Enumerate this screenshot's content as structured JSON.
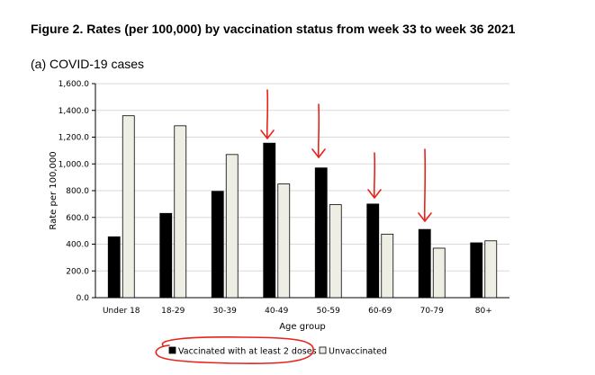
{
  "figure_title": "Figure 2. Rates (per 100,000) by vaccination status from week 33 to week 36 2021",
  "subtitle": "(a) COVID-19 cases",
  "chart_data": {
    "type": "bar",
    "title": "Figure 2. Rates (per 100,000) by vaccination status from week 33 to week 36 2021",
    "subtitle": "(a) COVID-19 cases",
    "xlabel": "Age group",
    "ylabel": "Rate per 100,000",
    "ylim": [
      0,
      1600
    ],
    "yticks": [
      0,
      200,
      400,
      600,
      800,
      1000,
      1200,
      1400,
      1600
    ],
    "ytick_labels": [
      "0.0",
      "200.0",
      "400.0",
      "600.0",
      "800.0",
      "1,000.0",
      "1,200.0",
      "1,400.0",
      "1,600.0"
    ],
    "categories": [
      "Under 18",
      "18-29",
      "30-39",
      "40-49",
      "50-59",
      "60-69",
      "70-79",
      "80+"
    ],
    "series": [
      {
        "name": "Vaccinated with at least 2 doses",
        "color": "#000000",
        "values": [
          455,
          630,
          795,
          1155,
          970,
          700,
          510,
          410
        ]
      },
      {
        "name": "Unvaccinated",
        "color": "#eeeee4",
        "values": [
          1360,
          1285,
          1070,
          850,
          695,
          475,
          370,
          425
        ]
      }
    ],
    "legend_position": "bottom",
    "grid": true,
    "annotation_color": "#e8231c"
  }
}
